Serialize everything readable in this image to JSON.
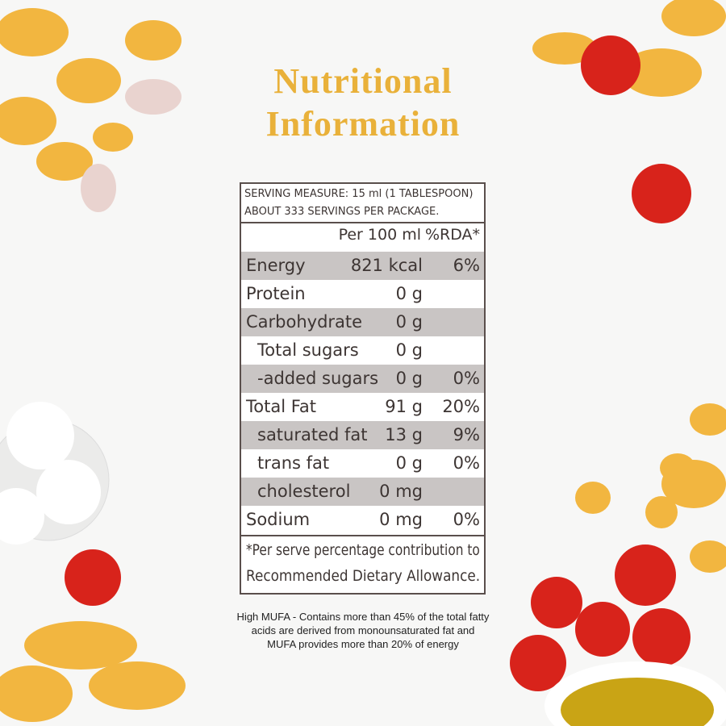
{
  "header": {
    "title": [
      "Nutritional",
      "Information"
    ]
  },
  "table": {
    "serving": [
      "SERVING MEASURE: 15 ml (1 TABLESPOON)",
      "ABOUT 333 SERVINGS PER PACKAGE."
    ],
    "columns": [
      "Per 100 ml",
      "%RDA*"
    ],
    "rows": [
      [
        "Energy",
        "821 kcal",
        "6%"
      ],
      [
        "Protein",
        "0 g"
      ],
      [
        "Carbohydrate",
        "0 g"
      ],
      [
        "Total sugars",
        "0 g"
      ],
      [
        "-added sugars",
        "0 g",
        "0%"
      ],
      [
        "Total Fat",
        "91 g",
        "20%"
      ],
      [
        "saturated fat",
        "13 g",
        "9%"
      ],
      [
        "trans fat",
        "0 g",
        "0%"
      ],
      [
        "cholesterol",
        "0 mg"
      ],
      [
        "Sodium",
        "0 mg",
        "0%"
      ]
    ],
    "footnote": [
      "*Per serve percentage contribution to",
      "Recommended Dietary Allowance."
    ]
  },
  "note": [
    "High MUFA - Contains more than 45% of the total fatty",
    "acids are derived from monounsaturated fat and",
    "MUFA provides more than 20% of energy"
  ]
}
